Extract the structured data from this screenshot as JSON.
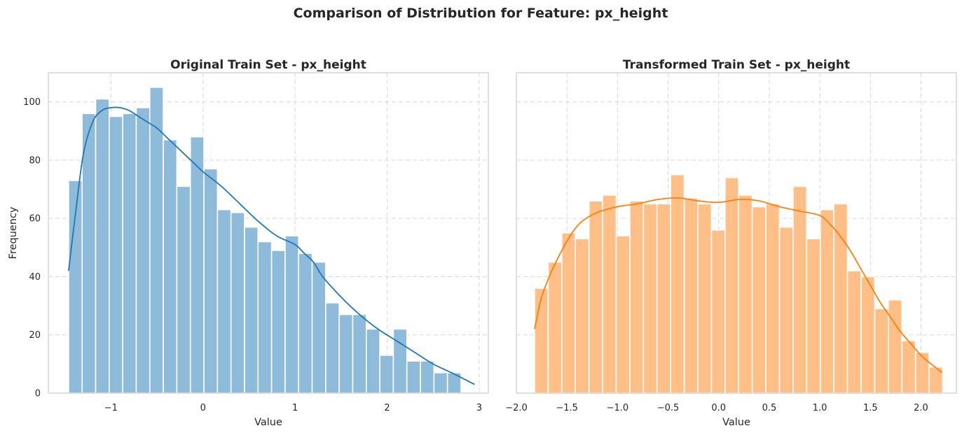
{
  "figure": {
    "title": "Comparison of Distribution for Feature: px_height"
  },
  "chart_data": [
    {
      "type": "bar",
      "title": "Original Train Set - px_height",
      "xlabel": "Value",
      "ylabel": "Frequency",
      "xlim": [
        -1.68,
        3.1
      ],
      "ylim": [
        0,
        110
      ],
      "xticks": [
        "−1",
        "0",
        "1",
        "2",
        "3"
      ],
      "xtick_values": [
        -1,
        0,
        1,
        2,
        3
      ],
      "yticks": [
        "0",
        "20",
        "40",
        "60",
        "80",
        "100"
      ],
      "ytick_values": [
        0,
        20,
        40,
        60,
        80,
        100
      ],
      "grid": true,
      "color": "#1f77b4",
      "bar_color": "#8fbbdb",
      "bin_start": -1.46,
      "bin_width": 0.147,
      "values": [
        73,
        96,
        101,
        95,
        96,
        98,
        105,
        87,
        71,
        88,
        77,
        63,
        62,
        57,
        52,
        49,
        54,
        48,
        45,
        31,
        27,
        27,
        22,
        13,
        22,
        11,
        11,
        7,
        7
      ],
      "kde": {
        "x": [
          -1.46,
          -1.38,
          -1.3,
          -1.2,
          -1.1,
          -1.0,
          -0.9,
          -0.8,
          -0.7,
          -0.6,
          -0.5,
          -0.4,
          -0.3,
          -0.2,
          -0.1,
          0.0,
          0.2,
          0.4,
          0.6,
          0.8,
          1.0,
          1.1,
          1.2,
          1.3,
          1.5,
          1.7,
          1.9,
          2.1,
          2.3,
          2.5,
          2.7,
          2.95
        ],
        "y": [
          42,
          63,
          82,
          93,
          97,
          98,
          98,
          97,
          95,
          93,
          91,
          88,
          85,
          82,
          79,
          76,
          71,
          65,
          59,
          54,
          51,
          48,
          45,
          40,
          33,
          27,
          22,
          18,
          14,
          10,
          7,
          3
        ]
      }
    },
    {
      "type": "bar",
      "title": "Transformed Train Set - px_height",
      "xlabel": "Value",
      "ylabel": "",
      "xlim": [
        -2.0,
        2.35
      ],
      "ylim": [
        0,
        110
      ],
      "xticks": [
        "−2.0",
        "−1.5",
        "−1.0",
        "−0.5",
        "0.0",
        "0.5",
        "1.0",
        "1.5",
        "2.0"
      ],
      "xtick_values": [
        -2.0,
        -1.5,
        -1.0,
        -0.5,
        0.0,
        0.5,
        1.0,
        1.5,
        2.0
      ],
      "yticks": [],
      "ytick_values": [
        0,
        20,
        40,
        60,
        80,
        100
      ],
      "grid": true,
      "color": "#ff7f0e",
      "bar_color": "#ffbf87",
      "bin_start": -1.82,
      "bin_width": 0.1345,
      "values": [
        36,
        45,
        55,
        53,
        66,
        68,
        54,
        66,
        65,
        65,
        75,
        67,
        65,
        56,
        74,
        68,
        64,
        65,
        57,
        71,
        53,
        63,
        65,
        42,
        40,
        29,
        32,
        18,
        14,
        9
      ],
      "kde": {
        "x": [
          -1.82,
          -1.75,
          -1.65,
          -1.55,
          -1.45,
          -1.35,
          -1.2,
          -1.0,
          -0.8,
          -0.6,
          -0.4,
          -0.2,
          0.0,
          0.2,
          0.4,
          0.6,
          0.8,
          1.0,
          1.1,
          1.2,
          1.3,
          1.4,
          1.5,
          1.6,
          1.7,
          1.8,
          1.9,
          2.0,
          2.1,
          2.21
        ],
        "y": [
          22,
          33,
          42,
          49,
          55,
          59,
          62,
          64,
          65,
          66.5,
          67,
          66,
          65.5,
          66.5,
          66,
          64,
          62.5,
          61,
          58,
          54,
          49,
          43,
          37,
          31,
          26,
          21,
          17,
          13,
          10,
          7
        ]
      }
    }
  ]
}
